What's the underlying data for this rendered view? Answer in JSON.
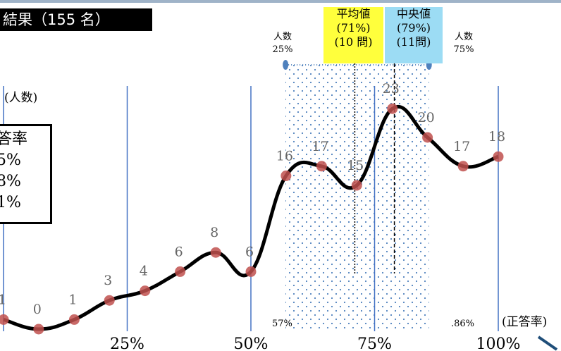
{
  "title": "結果（155 名）",
  "y_axis_label": "(人数)",
  "x_axis_unit": "(正答率)",
  "legend": {
    "lines": [
      "答率",
      "5%",
      "8%",
      "1%"
    ]
  },
  "mean_box": {
    "lines": [
      "平均値",
      "(71%)",
      "(10 問)"
    ]
  },
  "median_box": {
    "lines": [
      "中央値",
      "(79%)",
      "(11問)"
    ]
  },
  "quartile_labels": {
    "q1_label": "人数",
    "q1_value": "25%",
    "q3_label": "人数",
    "q3_value": "75%"
  },
  "range_labels": {
    "low": "57%",
    "high": ".86%"
  },
  "colors": {
    "curve": "#000000",
    "marker": "#c0504d",
    "gridline": "#4472c4",
    "band_dot": "#4f81bd",
    "mean_box": "#ffff3c",
    "median_box": "#9cdcf4"
  },
  "chart_data": {
    "type": "line",
    "title": "結果（155 名）",
    "xlabel": "(正答率)",
    "ylabel": "(人数)",
    "x_tick_labels": [
      "25%",
      "50%",
      "75%",
      "100%"
    ],
    "x_ticks": [
      25,
      50,
      75,
      100
    ],
    "x": [
      0,
      7.1,
      14.3,
      21.4,
      28.6,
      35.7,
      42.9,
      50,
      57.1,
      64.3,
      71.4,
      78.6,
      85.7,
      92.9,
      100
    ],
    "values": [
      1,
      0,
      1,
      3,
      4,
      6,
      8,
      6,
      16,
      17,
      15,
      23,
      20,
      17,
      18
    ],
    "point_labels": [
      "1",
      "0",
      "1",
      "3",
      "4",
      "6",
      "8",
      "6",
      "16",
      "17",
      "15",
      "23",
      "20",
      "17",
      "18"
    ],
    "markers": {
      "mean_x": 71,
      "median_x": 79,
      "q1_x": 57,
      "q3_x": 86
    },
    "xlim": [
      0,
      100
    ],
    "ylim": [
      0,
      24
    ],
    "grid": "vertical"
  }
}
